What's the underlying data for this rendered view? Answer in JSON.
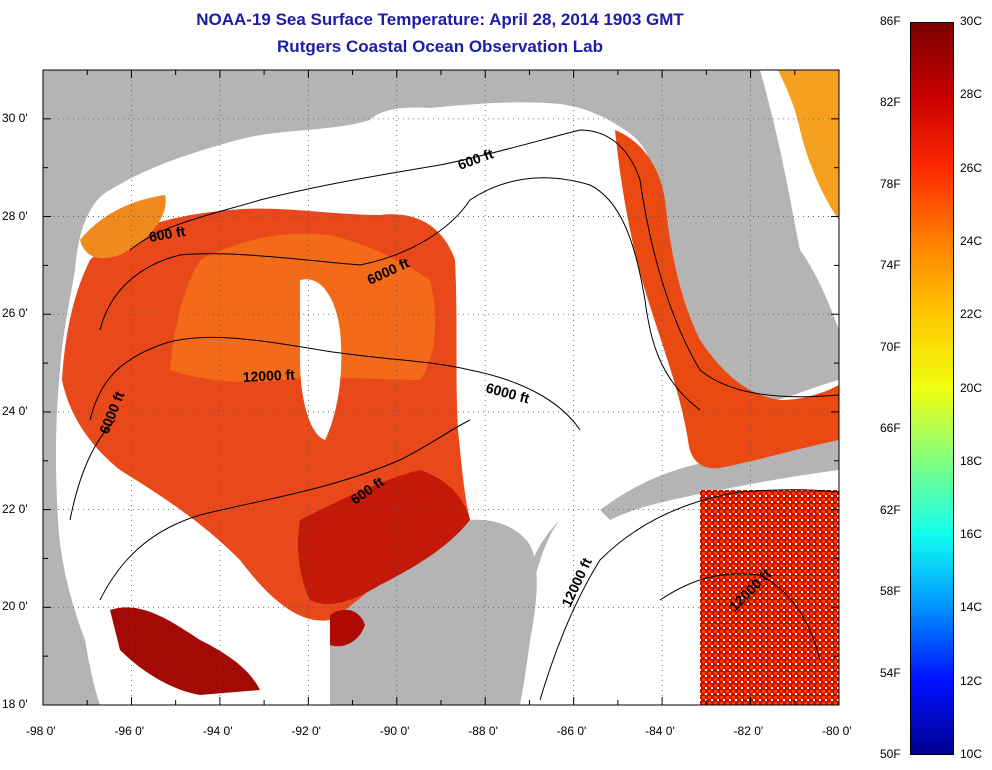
{
  "title": "NOAA-19 Sea Surface Temperature:  April 28, 2014 1903 GMT",
  "subtitle": "Rutgers Coastal Ocean Observation Lab",
  "map": {
    "lon_labels": [
      "-98 0'",
      "-96 0'",
      "-94 0'",
      "-92 0'",
      "-90 0'",
      "-88 0'",
      "-86 0'",
      "-84 0'",
      "-82 0'",
      "-80 0'"
    ],
    "lat_labels": [
      "30 0'",
      "28 0'",
      "26 0'",
      "24 0'",
      "22 0'",
      "20 0'",
      "18 0'"
    ],
    "lon_range": [
      -98,
      -80
    ],
    "lat_range": [
      18,
      31
    ],
    "contour_labels": [
      "600 ft",
      "600 ft",
      "600 ft",
      "6000 ft",
      "6000 ft",
      "6000 ft",
      "12000 ft",
      "12000 ft",
      "12000 ft"
    ],
    "land_color": "#b4b4b4",
    "no_data_color": "#ffffff"
  },
  "colorbar": {
    "fahrenheit_labels": [
      "86F",
      "82F",
      "78F",
      "74F",
      "70F",
      "66F",
      "62F",
      "58F",
      "54F",
      "50F"
    ],
    "celsius_labels": [
      "30C",
      "28C",
      "26C",
      "24C",
      "22C",
      "20C",
      "18C",
      "16C",
      "14C",
      "12C",
      "10C"
    ],
    "range_c": [
      10,
      30
    ],
    "colormap": [
      "#7a0000",
      "#c80000",
      "#ff2a00",
      "#ff8000",
      "#ffc800",
      "#f0ff10",
      "#80ff80",
      "#10ffef",
      "#0090ff",
      "#0010ff",
      "#00008f"
    ]
  }
}
